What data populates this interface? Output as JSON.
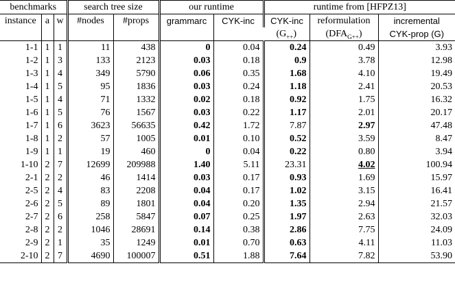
{
  "table": {
    "groups": [
      {
        "label": "benchmarks",
        "span": 3
      },
      {
        "label": "search tree size",
        "span": 2
      },
      {
        "label": "our runtime",
        "span": 2
      },
      {
        "label": "runtime from [HFPZ13]",
        "span": 3
      }
    ],
    "columns": [
      "instance",
      "a",
      "w",
      "#nodes",
      "#props",
      "grammarc",
      "CYK-inc",
      "CYK-inc",
      "reformulation",
      "incremental"
    ],
    "column_notes": [
      {
        "column": 7,
        "text": "(G",
        "sub": "++",
        "tail": ")"
      },
      {
        "column": 8,
        "text": "(DFA",
        "sub": "G++",
        "tail": ")"
      },
      {
        "column": 9,
        "text": "CYK-prop (G)"
      }
    ],
    "rows": [
      [
        "1-1",
        "1",
        "1",
        "11",
        "438",
        "0",
        "0.04",
        "0.24",
        "0.49",
        "3.93"
      ],
      [
        "1-2",
        "1",
        "3",
        "133",
        "2123",
        "0.03",
        "0.18",
        "0.9",
        "3.78",
        "12.98"
      ],
      [
        "1-3",
        "1",
        "4",
        "349",
        "5790",
        "0.06",
        "0.35",
        "1.68",
        "4.10",
        "19.49"
      ],
      [
        "1-4",
        "1",
        "5",
        "95",
        "1836",
        "0.03",
        "0.24",
        "1.18",
        "2.41",
        "20.53"
      ],
      [
        "1-5",
        "1",
        "4",
        "71",
        "1332",
        "0.02",
        "0.18",
        "0.92",
        "1.75",
        "16.32"
      ],
      [
        "1-6",
        "1",
        "5",
        "76",
        "1567",
        "0.03",
        "0.22",
        "1.17",
        "2.01",
        "20.17"
      ],
      [
        "1-7",
        "1",
        "6",
        "3623",
        "56635",
        "0.42",
        "1.72",
        "7.87",
        "2.97",
        "47.48"
      ],
      [
        "1-8",
        "1",
        "2",
        "57",
        "1005",
        "0.01",
        "0.10",
        "0.52",
        "3.59",
        "8.47"
      ],
      [
        "1-9",
        "1",
        "1",
        "19",
        "460",
        "0",
        "0.04",
        "0.22",
        "0.80",
        "3.94"
      ],
      [
        "1-10",
        "2",
        "7",
        "12699",
        "209988",
        "1.40",
        "5.11",
        "23.31",
        "4.02",
        "100.94"
      ],
      [
        "2-1",
        "2",
        "2",
        "46",
        "1414",
        "0.03",
        "0.17",
        "0.93",
        "1.69",
        "15.97"
      ],
      [
        "2-5",
        "2",
        "4",
        "83",
        "2208",
        "0.04",
        "0.17",
        "1.02",
        "3.15",
        "16.41"
      ],
      [
        "2-6",
        "2",
        "5",
        "89",
        "1801",
        "0.04",
        "0.20",
        "1.35",
        "2.94",
        "21.57"
      ],
      [
        "2-7",
        "2",
        "6",
        "258",
        "5847",
        "0.07",
        "0.25",
        "1.97",
        "2.63",
        "32.03"
      ],
      [
        "2-8",
        "2",
        "2",
        "1046",
        "28691",
        "0.14",
        "0.38",
        "2.86",
        "7.75",
        "24.09"
      ],
      [
        "2-9",
        "2",
        "1",
        "35",
        "1249",
        "0.01",
        "0.70",
        "0.63",
        "4.11",
        "11.03"
      ],
      [
        "2-10",
        "2",
        "7",
        "4690",
        "100007",
        "0.51",
        "1.88",
        "7.64",
        "7.82",
        "53.90"
      ]
    ],
    "bold": [
      [
        0,
        5
      ],
      [
        1,
        5
      ],
      [
        2,
        5
      ],
      [
        3,
        5
      ],
      [
        4,
        5
      ],
      [
        5,
        5
      ],
      [
        6,
        5
      ],
      [
        7,
        5
      ],
      [
        8,
        5
      ],
      [
        9,
        5
      ],
      [
        10,
        5
      ],
      [
        11,
        5
      ],
      [
        12,
        5
      ],
      [
        13,
        5
      ],
      [
        14,
        5
      ],
      [
        15,
        5
      ],
      [
        16,
        5
      ],
      [
        0,
        7
      ],
      [
        1,
        7
      ],
      [
        2,
        7
      ],
      [
        3,
        7
      ],
      [
        4,
        7
      ],
      [
        5,
        7
      ],
      [
        6,
        8
      ],
      [
        7,
        7
      ],
      [
        8,
        7
      ],
      [
        9,
        8
      ],
      [
        10,
        7
      ],
      [
        11,
        7
      ],
      [
        12,
        7
      ],
      [
        13,
        7
      ],
      [
        14,
        7
      ],
      [
        15,
        7
      ],
      [
        16,
        7
      ]
    ],
    "underline": [
      [
        9,
        8
      ]
    ]
  }
}
